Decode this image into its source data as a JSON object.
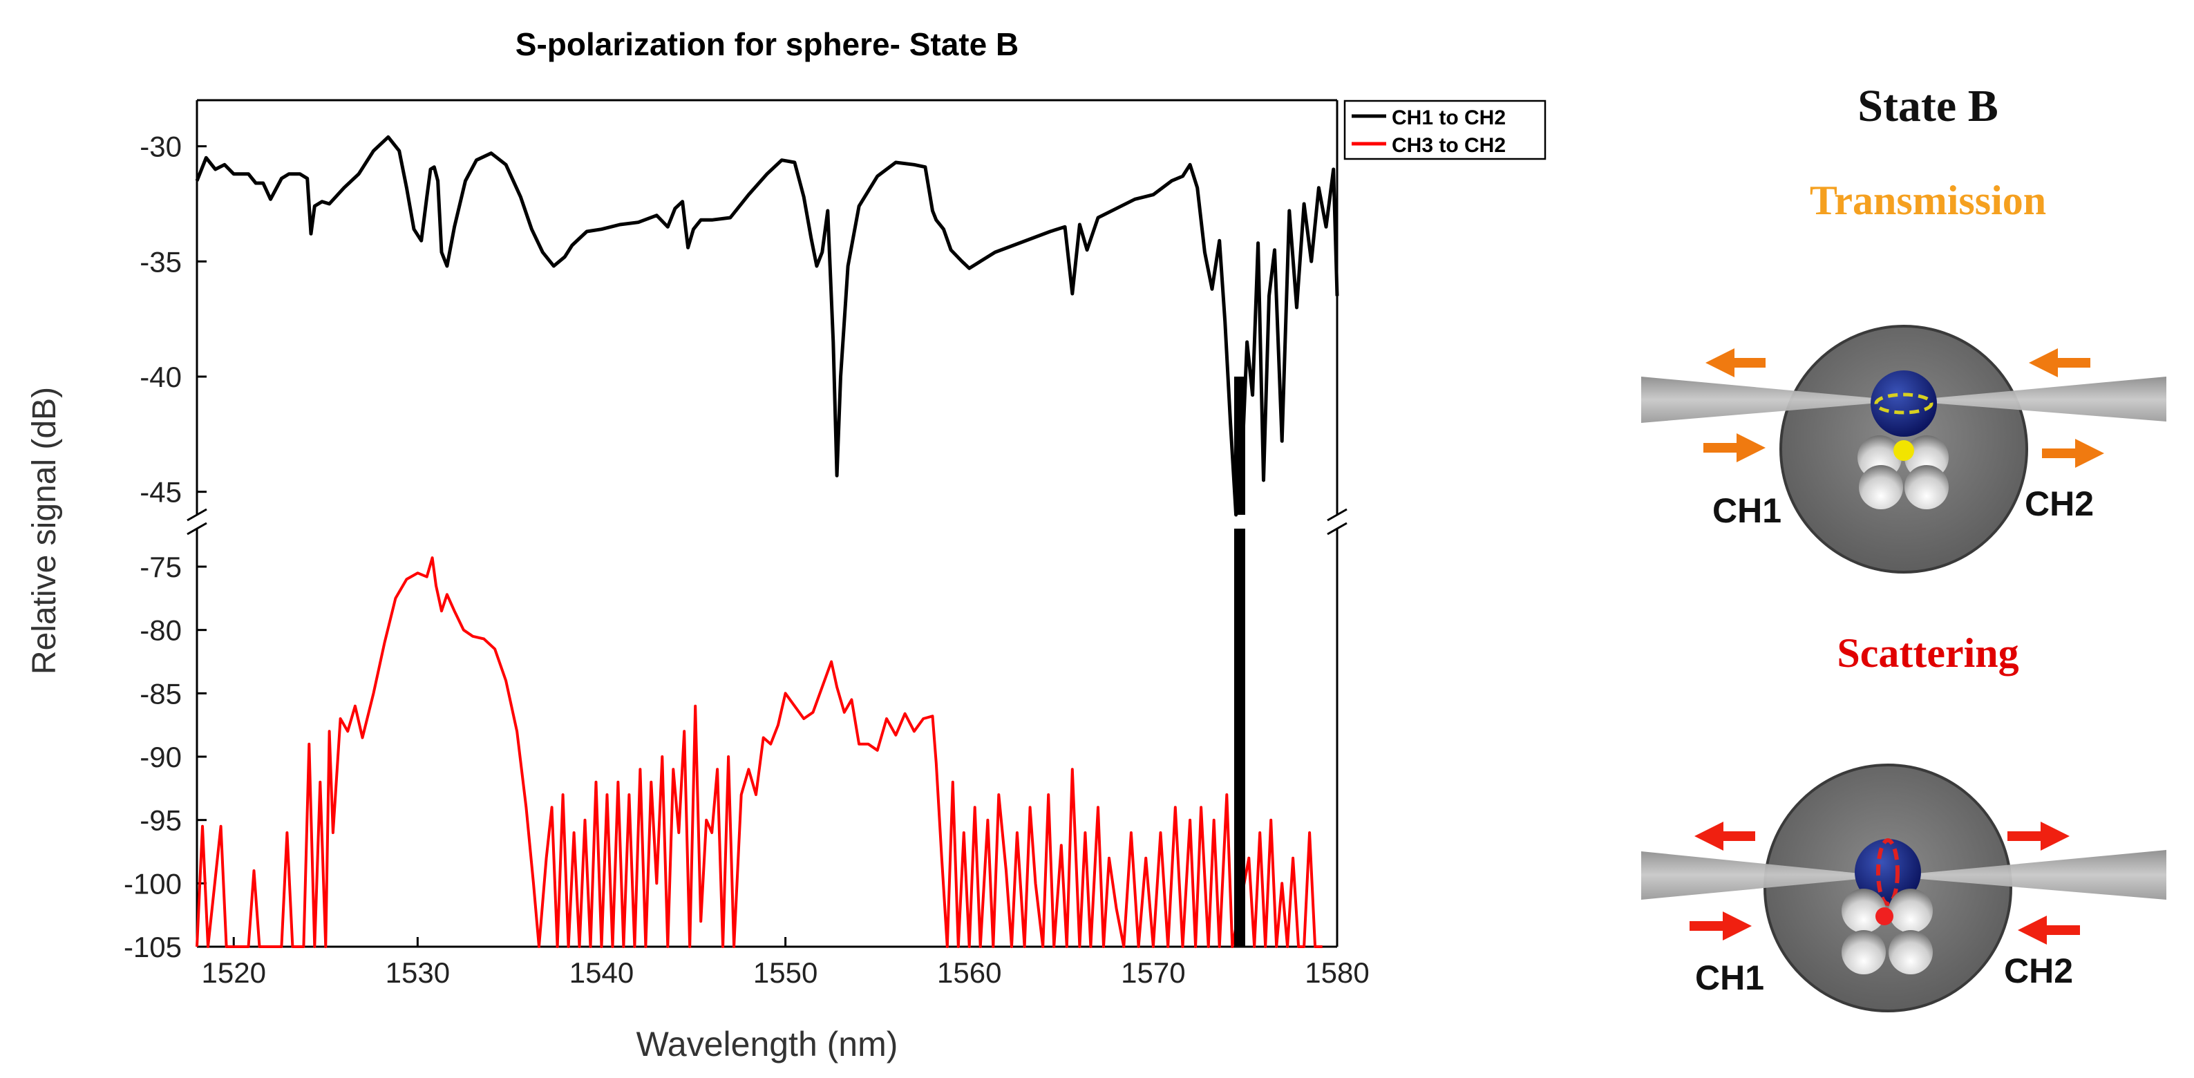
{
  "chart_data": {
    "type": "line",
    "title": "S-polarization for sphere- State B",
    "xlabel": "Wavelength (nm)",
    "ylabel": "Relative signal (dB)",
    "xlim": [
      1518,
      1580
    ],
    "x_ticks": [
      1520,
      1530,
      1540,
      1550,
      1560,
      1570,
      1580
    ],
    "axis_break": true,
    "upper_ylim": [
      -46,
      -28
    ],
    "upper_y_ticks": [
      -30,
      -35,
      -40,
      -45
    ],
    "lower_ylim": [
      -105,
      -72
    ],
    "lower_y_ticks": [
      -75,
      -80,
      -85,
      -90,
      -95,
      -100,
      -105
    ],
    "legend": {
      "placement": "top-right",
      "entries": [
        "CH1 to CH2",
        "CH3 to CH2"
      ]
    },
    "series": [
      {
        "name": "CH1 to CH2",
        "color": "#000000",
        "axis": "upper",
        "x": [
          1518,
          1518.5,
          1519,
          1519.5,
          1520,
          1520.8,
          1521.2,
          1521.6,
          1522,
          1522.6,
          1523,
          1523.6,
          1524,
          1524.2,
          1524.4,
          1524.8,
          1525.2,
          1526,
          1526.8,
          1527.6,
          1528.4,
          1529,
          1529.4,
          1529.8,
          1530.2,
          1530.5,
          1530.7,
          1530.9,
          1531.1,
          1531.3,
          1531.6,
          1532,
          1532.6,
          1533.2,
          1534,
          1534.8,
          1535.6,
          1536.2,
          1536.8,
          1537.4,
          1538,
          1538.4,
          1538.8,
          1539.2,
          1540,
          1541,
          1542,
          1543,
          1543.6,
          1544,
          1544.4,
          1544.7,
          1545,
          1545.4,
          1546,
          1547,
          1548,
          1549,
          1549.8,
          1550.5,
          1551,
          1551.4,
          1551.7,
          1552,
          1552.3,
          1552.6,
          1552.8,
          1553,
          1553.4,
          1554,
          1555,
          1556,
          1557,
          1557.6,
          1558,
          1558.2,
          1558.6,
          1559,
          1559.6,
          1560,
          1560.6,
          1561.4,
          1562.4,
          1563.4,
          1564.4,
          1565.2,
          1565.6,
          1566,
          1566.4,
          1567,
          1568,
          1569,
          1570,
          1571,
          1571.6,
          1572,
          1572.4,
          1572.8,
          1573.2,
          1573.6,
          1573.9,
          1574.2,
          1574.5,
          1574.8,
          1575.1,
          1575.4,
          1575.7,
          1576,
          1576.3,
          1576.6,
          1577,
          1577.4,
          1577.8,
          1578.2,
          1578.6,
          1579,
          1579.4,
          1579.8,
          1580
        ],
        "y": [
          -31.5,
          -30.5,
          -31,
          -30.8,
          -31.2,
          -31.2,
          -31.6,
          -31.6,
          -32.3,
          -31.4,
          -31.2,
          -31.2,
          -31.4,
          -33.8,
          -32.6,
          -32.4,
          -32.5,
          -31.8,
          -31.2,
          -30.2,
          -29.6,
          -30.2,
          -31.8,
          -33.6,
          -34.1,
          -32.2,
          -31,
          -30.9,
          -31.5,
          -34.6,
          -35.2,
          -33.5,
          -31.5,
          -30.6,
          -30.3,
          -30.8,
          -32.2,
          -33.6,
          -34.6,
          -35.2,
          -34.8,
          -34.3,
          -34,
          -33.7,
          -33.6,
          -33.4,
          -33.3,
          -33,
          -33.5,
          -32.7,
          -32.4,
          -34.4,
          -33.6,
          -33.2,
          -33.2,
          -33.1,
          -32.1,
          -31.2,
          -30.6,
          -30.7,
          -32.2,
          -34,
          -35.2,
          -34.6,
          -32.8,
          -38.5,
          -44.3,
          -40,
          -35.2,
          -32.6,
          -31.3,
          -30.7,
          -30.8,
          -30.9,
          -32.8,
          -33.2,
          -33.6,
          -34.5,
          -35,
          -35.3,
          -35,
          -34.6,
          -34.3,
          -34,
          -33.7,
          -33.5,
          -36.4,
          -33.4,
          -34.5,
          -33.1,
          -32.7,
          -32.3,
          -32.1,
          -31.5,
          -31.3,
          -30.8,
          -31.8,
          -34.6,
          -36.2,
          -34.1,
          -37.6,
          -42,
          -46,
          -44.2,
          -38.5,
          -40.8,
          -34.2,
          -44.5,
          -36.5,
          -34.5,
          -42.8,
          -32.8,
          -37,
          -32.5,
          -35,
          -31.8,
          -33.5,
          -31,
          -36.5
        ],
        "gap_band": [
          1574.4,
          1575
        ]
      },
      {
        "name": "CH3 to CH2",
        "color": "#ff0000",
        "axis": "lower",
        "x": [
          1518,
          1518.3,
          1518.6,
          1519.3,
          1519.6,
          1520,
          1520.8,
          1521.1,
          1521.4,
          1522.6,
          1522.9,
          1523.2,
          1523.8,
          1524.1,
          1524.4,
          1524.7,
          1525,
          1525.2,
          1525.4,
          1525.8,
          1526.2,
          1526.6,
          1527,
          1527.6,
          1528.2,
          1528.8,
          1529.4,
          1530,
          1530.5,
          1530.8,
          1531,
          1531.3,
          1531.6,
          1532,
          1532.5,
          1533,
          1533.6,
          1534.2,
          1534.8,
          1535.4,
          1535.9,
          1536.3,
          1536.6,
          1537,
          1537.3,
          1537.6,
          1537.9,
          1538.2,
          1538.5,
          1538.8,
          1539.1,
          1539.4,
          1539.7,
          1540,
          1540.3,
          1540.6,
          1540.9,
          1541.2,
          1541.5,
          1541.8,
          1542.1,
          1542.4,
          1542.7,
          1543,
          1543.3,
          1543.6,
          1543.9,
          1544.2,
          1544.5,
          1544.8,
          1545.1,
          1545.4,
          1545.7,
          1546,
          1546.3,
          1546.6,
          1546.9,
          1547.2,
          1547.6,
          1548,
          1548.4,
          1548.8,
          1549.2,
          1549.6,
          1550,
          1550.5,
          1551,
          1551.5,
          1552,
          1552.5,
          1552.8,
          1553.2,
          1553.6,
          1554,
          1554.5,
          1555,
          1555.5,
          1556,
          1556.5,
          1557,
          1557.5,
          1558,
          1558.2,
          1558.5,
          1558.8,
          1559.1,
          1559.4,
          1559.7,
          1560,
          1560.3,
          1560.6,
          1561,
          1561.3,
          1561.6,
          1562,
          1562.3,
          1562.6,
          1563,
          1563.3,
          1563.6,
          1564,
          1564.3,
          1564.6,
          1565,
          1565.3,
          1565.6,
          1566,
          1566.3,
          1566.6,
          1567,
          1567.3,
          1567.6,
          1568,
          1568.4,
          1568.8,
          1569.2,
          1569.6,
          1570,
          1570.4,
          1570.8,
          1571.2,
          1571.6,
          1572,
          1572.3,
          1572.6,
          1573,
          1573.3,
          1573.6,
          1574,
          1574.3,
          1575.2,
          1575.5,
          1575.8,
          1576.1,
          1576.4,
          1576.7,
          1577,
          1577.3,
          1577.6,
          1577.9,
          1578.2,
          1578.5,
          1578.8,
          1579.2
        ],
        "y": [
          -105,
          -95.5,
          -105,
          -95.5,
          -105,
          -105,
          -105,
          -99,
          -105,
          -105,
          -96,
          -105,
          -105,
          -89,
          -105,
          -92,
          -105,
          -88,
          -96,
          -87,
          -88,
          -86,
          -88.5,
          -85,
          -81,
          -77.5,
          -76,
          -75.5,
          -75.8,
          -74.3,
          -76.5,
          -78.5,
          -77.2,
          -78.5,
          -80,
          -80.5,
          -80.7,
          -81.5,
          -84,
          -88,
          -94,
          -100,
          -105,
          -98,
          -94,
          -105,
          -93,
          -105,
          -96,
          -105,
          -95,
          -105,
          -92,
          -105,
          -93,
          -105,
          -92,
          -105,
          -93,
          -105,
          -91,
          -105,
          -92,
          -100,
          -90,
          -105,
          -91,
          -96,
          -88,
          -105,
          -86,
          -103,
          -95,
          -96,
          -91,
          -105,
          -90,
          -105,
          -93,
          -91,
          -93,
          -88.5,
          -89,
          -87.5,
          -85,
          -86,
          -87,
          -86.5,
          -84.5,
          -82.5,
          -84.5,
          -86.5,
          -85.5,
          -89,
          -89,
          -89.5,
          -87,
          -88.3,
          -86.6,
          -88,
          -87,
          -86.8,
          -90.5,
          -98,
          -105,
          -92,
          -105,
          -96,
          -105,
          -94,
          -105,
          -95,
          -105,
          -93,
          -99,
          -105,
          -96,
          -105,
          -94,
          -100,
          -105,
          -93,
          -105,
          -97,
          -105,
          -91,
          -105,
          -96,
          -105,
          -94,
          -105,
          -98,
          -102,
          -105,
          -96,
          -105,
          -98,
          -105,
          -96,
          -105,
          -94,
          -105,
          -95,
          -105,
          -94,
          -105,
          -95,
          -105,
          -93,
          -105,
          -98,
          -105,
          -96,
          -105,
          -95,
          -105,
          -100,
          -105,
          -98,
          -105,
          -105,
          -96,
          -105,
          -105
        ],
        "gap_band": [
          1574.4,
          1575
        ]
      }
    ]
  },
  "diagram": {
    "title": "State B",
    "transmission_label": "Transmission",
    "scattering_label": "Scattering",
    "top_left_channel": "CH1",
    "top_right_channel": "CH2",
    "bottom_left_channel": "CH1",
    "bottom_right_channel": "CH2",
    "transmission_color": "#f5a01f",
    "scattering_color": "#e00000",
    "arrow_orange": "#f07a10",
    "arrow_red": "#f02010"
  }
}
